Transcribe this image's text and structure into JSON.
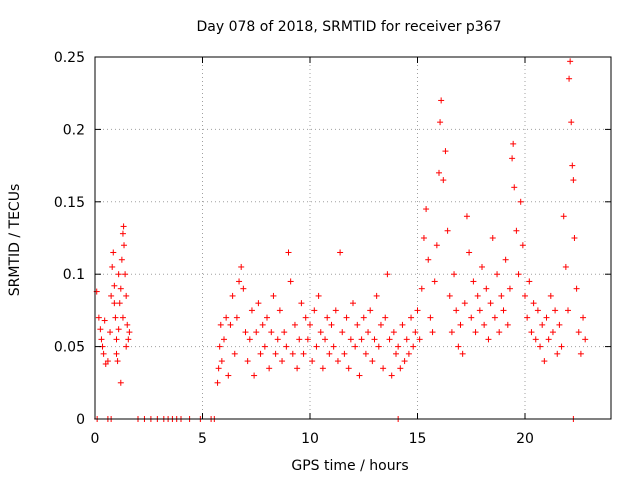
{
  "chart_data": {
    "type": "scatter",
    "title": "Day 078 of 2018, SRMTID for receiver p367",
    "xlabel": "GPS time / hours",
    "ylabel": "SRMTID / TECUs",
    "xlim": [
      0,
      24
    ],
    "ylim": [
      0,
      0.25
    ],
    "xticks": [
      0,
      5,
      10,
      15,
      20
    ],
    "yticks": [
      0,
      0.05,
      0.1,
      0.15,
      0.2,
      0.25
    ],
    "xtick_labels": [
      "0",
      "5",
      "10",
      "15",
      "20"
    ],
    "ytick_labels": [
      "0",
      "0.05",
      "0.1",
      "0.15",
      "0.2",
      "0.25"
    ],
    "grid": true,
    "marker": "+",
    "series": [
      {
        "name": "SRMTID",
        "color": "#ff0000",
        "points": [
          [
            0.08,
            0.088
          ],
          [
            0.18,
            0.07
          ],
          [
            0.25,
            0.062
          ],
          [
            0.3,
            0.055
          ],
          [
            0.35,
            0.05
          ],
          [
            0.4,
            0.045
          ],
          [
            0.45,
            0.068
          ],
          [
            0.5,
            0.038
          ],
          [
            0.6,
            0.04
          ],
          [
            0.7,
            0.06
          ],
          [
            0.75,
            0.085
          ],
          [
            0.8,
            0.105
          ],
          [
            0.85,
            0.115
          ],
          [
            0.9,
            0.092
          ],
          [
            0.95,
            0.07
          ],
          [
            1.0,
            0.055
          ],
          [
            1.05,
            0.04
          ],
          [
            1.1,
            0.062
          ],
          [
            1.15,
            0.08
          ],
          [
            1.2,
            0.09
          ],
          [
            1.25,
            0.11
          ],
          [
            1.3,
            0.128
          ],
          [
            1.33,
            0.133
          ],
          [
            1.35,
            0.12
          ],
          [
            1.4,
            0.1
          ],
          [
            1.45,
            0.085
          ],
          [
            1.5,
            0.065
          ],
          [
            1.55,
            0.055
          ],
          [
            1.6,
            0.06
          ],
          [
            1.2,
            0.025
          ],
          [
            1.0,
            0.045
          ],
          [
            0.9,
            0.08
          ],
          [
            1.1,
            0.1
          ],
          [
            1.3,
            0.07
          ],
          [
            1.45,
            0.05
          ],
          [
            5.7,
            0.025
          ],
          [
            5.75,
            0.035
          ],
          [
            5.8,
            0.05
          ],
          [
            5.85,
            0.065
          ],
          [
            5.9,
            0.04
          ],
          [
            6.0,
            0.055
          ],
          [
            6.1,
            0.07
          ],
          [
            6.2,
            0.03
          ],
          [
            6.3,
            0.065
          ],
          [
            6.4,
            0.085
          ],
          [
            6.5,
            0.045
          ],
          [
            6.6,
            0.07
          ],
          [
            6.7,
            0.095
          ],
          [
            6.8,
            0.105
          ],
          [
            6.9,
            0.09
          ],
          [
            7.0,
            0.06
          ],
          [
            7.1,
            0.04
          ],
          [
            7.2,
            0.055
          ],
          [
            7.3,
            0.075
          ],
          [
            7.4,
            0.03
          ],
          [
            7.5,
            0.06
          ],
          [
            7.6,
            0.08
          ],
          [
            7.7,
            0.045
          ],
          [
            7.8,
            0.065
          ],
          [
            7.9,
            0.05
          ],
          [
            8.0,
            0.07
          ],
          [
            8.1,
            0.035
          ],
          [
            8.2,
            0.06
          ],
          [
            8.3,
            0.085
          ],
          [
            8.4,
            0.045
          ],
          [
            8.5,
            0.055
          ],
          [
            8.6,
            0.075
          ],
          [
            8.7,
            0.04
          ],
          [
            8.8,
            0.06
          ],
          [
            8.9,
            0.05
          ],
          [
            9.0,
            0.115
          ],
          [
            9.1,
            0.095
          ],
          [
            9.2,
            0.045
          ],
          [
            9.3,
            0.065
          ],
          [
            9.4,
            0.035
          ],
          [
            9.5,
            0.055
          ],
          [
            9.6,
            0.08
          ],
          [
            9.7,
            0.045
          ],
          [
            9.8,
            0.07
          ],
          [
            9.9,
            0.055
          ],
          [
            10.0,
            0.065
          ],
          [
            10.1,
            0.04
          ],
          [
            10.2,
            0.075
          ],
          [
            10.3,
            0.05
          ],
          [
            10.4,
            0.085
          ],
          [
            10.5,
            0.06
          ],
          [
            10.6,
            0.035
          ],
          [
            10.7,
            0.055
          ],
          [
            10.8,
            0.07
          ],
          [
            10.9,
            0.045
          ],
          [
            11.0,
            0.065
          ],
          [
            11.1,
            0.05
          ],
          [
            11.2,
            0.075
          ],
          [
            11.3,
            0.04
          ],
          [
            11.4,
            0.115
          ],
          [
            11.5,
            0.06
          ],
          [
            11.6,
            0.045
          ],
          [
            11.7,
            0.07
          ],
          [
            11.8,
            0.035
          ],
          [
            11.9,
            0.055
          ],
          [
            12.0,
            0.08
          ],
          [
            12.1,
            0.05
          ],
          [
            12.2,
            0.065
          ],
          [
            12.3,
            0.03
          ],
          [
            12.4,
            0.055
          ],
          [
            12.5,
            0.07
          ],
          [
            12.6,
            0.045
          ],
          [
            12.7,
            0.06
          ],
          [
            12.8,
            0.075
          ],
          [
            12.9,
            0.04
          ],
          [
            13.0,
            0.055
          ],
          [
            13.1,
            0.085
          ],
          [
            13.2,
            0.05
          ],
          [
            13.3,
            0.065
          ],
          [
            13.4,
            0.035
          ],
          [
            13.5,
            0.07
          ],
          [
            13.6,
            0.1
          ],
          [
            13.7,
            0.055
          ],
          [
            13.8,
            0.03
          ],
          [
            13.9,
            0.06
          ],
          [
            14.0,
            0.045
          ],
          [
            14.1,
            0.05
          ],
          [
            14.2,
            0.035
          ],
          [
            14.3,
            0.065
          ],
          [
            14.4,
            0.04
          ],
          [
            14.5,
            0.055
          ],
          [
            14.6,
            0.045
          ],
          [
            14.7,
            0.07
          ],
          [
            14.8,
            0.05
          ],
          [
            14.9,
            0.06
          ],
          [
            15.0,
            0.075
          ],
          [
            15.1,
            0.055
          ],
          [
            15.2,
            0.09
          ],
          [
            15.3,
            0.125
          ],
          [
            15.4,
            0.145
          ],
          [
            15.5,
            0.11
          ],
          [
            15.6,
            0.07
          ],
          [
            15.7,
            0.06
          ],
          [
            15.8,
            0.095
          ],
          [
            15.9,
            0.12
          ],
          [
            16.0,
            0.17
          ],
          [
            16.05,
            0.205
          ],
          [
            16.1,
            0.22
          ],
          [
            16.2,
            0.165
          ],
          [
            16.3,
            0.185
          ],
          [
            16.4,
            0.13
          ],
          [
            16.5,
            0.085
          ],
          [
            16.6,
            0.06
          ],
          [
            16.7,
            0.1
          ],
          [
            16.8,
            0.075
          ],
          [
            16.9,
            0.05
          ],
          [
            17.0,
            0.065
          ],
          [
            17.1,
            0.045
          ],
          [
            17.2,
            0.08
          ],
          [
            17.3,
            0.14
          ],
          [
            17.4,
            0.115
          ],
          [
            17.5,
            0.07
          ],
          [
            17.6,
            0.095
          ],
          [
            17.7,
            0.06
          ],
          [
            17.8,
            0.085
          ],
          [
            17.9,
            0.075
          ],
          [
            18.0,
            0.105
          ],
          [
            18.1,
            0.065
          ],
          [
            18.2,
            0.09
          ],
          [
            18.3,
            0.055
          ],
          [
            18.4,
            0.08
          ],
          [
            18.5,
            0.125
          ],
          [
            18.6,
            0.07
          ],
          [
            18.7,
            0.1
          ],
          [
            18.8,
            0.06
          ],
          [
            18.9,
            0.085
          ],
          [
            19.0,
            0.075
          ],
          [
            19.1,
            0.11
          ],
          [
            19.2,
            0.065
          ],
          [
            19.3,
            0.09
          ],
          [
            19.4,
            0.18
          ],
          [
            19.45,
            0.19
          ],
          [
            19.5,
            0.16
          ],
          [
            19.6,
            0.13
          ],
          [
            19.7,
            0.1
          ],
          [
            19.8,
            0.15
          ],
          [
            19.9,
            0.12
          ],
          [
            20.0,
            0.085
          ],
          [
            20.1,
            0.07
          ],
          [
            20.2,
            0.095
          ],
          [
            20.3,
            0.06
          ],
          [
            20.4,
            0.08
          ],
          [
            20.5,
            0.055
          ],
          [
            20.6,
            0.075
          ],
          [
            20.7,
            0.05
          ],
          [
            20.8,
            0.065
          ],
          [
            20.9,
            0.04
          ],
          [
            21.0,
            0.07
          ],
          [
            21.1,
            0.055
          ],
          [
            21.2,
            0.085
          ],
          [
            21.3,
            0.06
          ],
          [
            21.4,
            0.075
          ],
          [
            21.5,
            0.045
          ],
          [
            21.6,
            0.065
          ],
          [
            21.7,
            0.05
          ],
          [
            21.8,
            0.14
          ],
          [
            21.9,
            0.105
          ],
          [
            22.0,
            0.075
          ],
          [
            22.05,
            0.235
          ],
          [
            22.1,
            0.247
          ],
          [
            22.15,
            0.205
          ],
          [
            22.2,
            0.175
          ],
          [
            22.25,
            0.165
          ],
          [
            22.3,
            0.125
          ],
          [
            22.4,
            0.09
          ],
          [
            22.5,
            0.06
          ],
          [
            22.6,
            0.045
          ],
          [
            22.7,
            0.07
          ],
          [
            22.8,
            0.055
          ],
          [
            0.1,
            0.0
          ],
          [
            0.6,
            0.0
          ],
          [
            0.75,
            0.0
          ],
          [
            2.0,
            0.0
          ],
          [
            2.3,
            0.0
          ],
          [
            2.6,
            0.0
          ],
          [
            2.9,
            0.0
          ],
          [
            3.2,
            0.0
          ],
          [
            3.4,
            0.0
          ],
          [
            3.6,
            0.0
          ],
          [
            3.8,
            0.0
          ],
          [
            4.0,
            0.0
          ],
          [
            4.4,
            0.0
          ],
          [
            4.9,
            0.0
          ],
          [
            5.4,
            0.0
          ],
          [
            5.55,
            0.0
          ],
          [
            14.1,
            0.0
          ],
          [
            22.25,
            0.0
          ]
        ]
      }
    ]
  }
}
